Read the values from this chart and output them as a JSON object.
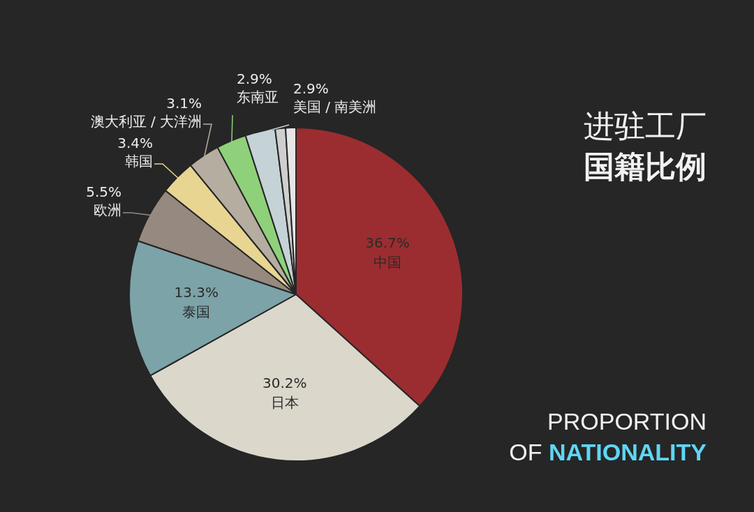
{
  "chart_data": {
    "type": "pie",
    "title": "进驻工厂",
    "subtitle": "国籍比例",
    "annotations": [
      "PROPORTION OF NATIONALITY"
    ],
    "categories": [
      "中国",
      "日本",
      "泰国",
      "欧洲",
      "韩国",
      "澳大利亚 / 大洋洲",
      "东南亚",
      "美国 / 南美洲",
      null,
      null
    ],
    "values": [
      36.7,
      30.2,
      13.3,
      5.5,
      3.4,
      3.1,
      2.9,
      2.9,
      1.0,
      1.0
    ],
    "colors": [
      "#9b2d30",
      "#dbd7cb",
      "#7ca3a8",
      "#968a80",
      "#e8d592",
      "#b4ada0",
      "#8fd17a",
      "#c5d3d6",
      "#cfcfcf",
      "#e6e6e6"
    ],
    "value_labels": [
      "36.7%",
      "30.2%",
      "13.3%",
      "5.5%",
      "3.4%",
      "3.1%",
      "2.9%",
      "2.9%",
      null,
      null
    ],
    "legend": false
  }
}
